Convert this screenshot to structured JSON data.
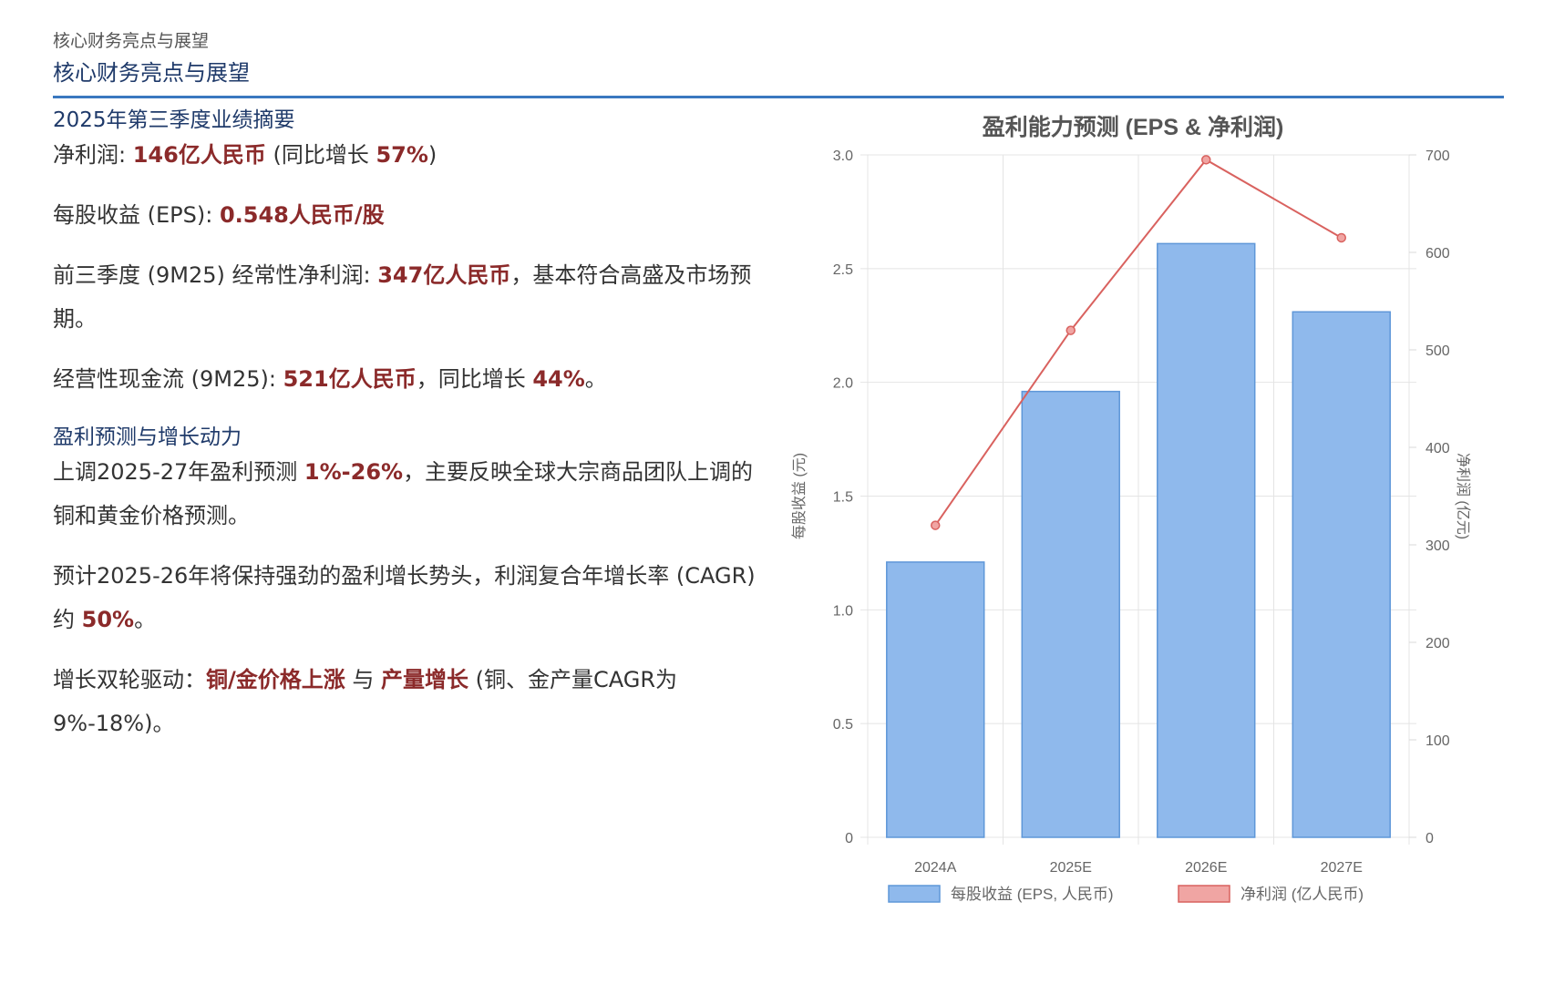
{
  "header": {
    "breadcrumb": "核心财务亮点与展望",
    "title": "核心财务亮点与展望"
  },
  "summary": {
    "heading": "2025年第三季度业绩摘要",
    "p1": {
      "t1": "净利润: ",
      "h1": "146亿人民币",
      "t2": " (同比增长 ",
      "h2": "57%",
      "t3": ")"
    },
    "p2": {
      "t1": "每股收益 (EPS): ",
      "h1": "0.548人民币/股"
    },
    "p3": {
      "t1": "前三季度 (9M25) 经常性净利润: ",
      "h1": "347亿人民币",
      "t2": "，基本符合高盛及市场预期。"
    },
    "p4": {
      "t1": "经营性现金流 (9M25): ",
      "h1": "521亿人民币",
      "t2": "，同比增长 ",
      "h2": "44%",
      "t3": "。"
    }
  },
  "forecast": {
    "heading": "盈利预测与增长动力",
    "p5": {
      "t1": "上调2025-27年盈利预测 ",
      "h1": "1%-26%",
      "t2": "，主要反映全球大宗商品团队上调的铜和黄金价格预测。"
    },
    "p6": {
      "t1": "预计2025-26年将保持强劲的盈利增长势头，利润复合年增长率 (CAGR) 约 ",
      "h1": "50%",
      "t2": "。"
    },
    "p7": {
      "t1": "增长双轮驱动：",
      "h1": "铜/金价格上涨",
      "t2": " 与 ",
      "h2": "产量增长",
      "t3": " (铜、金产量CAGR为9%-18%)。"
    }
  },
  "chart_data": {
    "type": "bar",
    "title": "盈利能力预测 (EPS & 净利润)",
    "categories": [
      "2024A",
      "2025E",
      "2026E",
      "2027E"
    ],
    "series": [
      {
        "name": "每股收益 (EPS, 人民币)",
        "type": "bar",
        "axis": "left",
        "values": [
          1.21,
          1.96,
          2.61,
          2.31
        ],
        "color": "#8fb9ec"
      },
      {
        "name": "净利润 (亿人民币)",
        "type": "line",
        "axis": "right",
        "values": [
          320,
          520,
          695,
          615
        ],
        "color": "#d9625f"
      }
    ],
    "y_left": {
      "label": "每股收益 (元)",
      "min": 0,
      "max": 3.0,
      "ticks": [
        "0",
        "0.5",
        "1.0",
        "1.5",
        "2.0",
        "2.5",
        "3.0"
      ]
    },
    "y_right": {
      "label": "净利润 (亿元)",
      "min": 0,
      "max": 700,
      "ticks": [
        "0",
        "100",
        "200",
        "300",
        "400",
        "500",
        "600",
        "700"
      ]
    },
    "grid": true,
    "legend": "bottom"
  }
}
